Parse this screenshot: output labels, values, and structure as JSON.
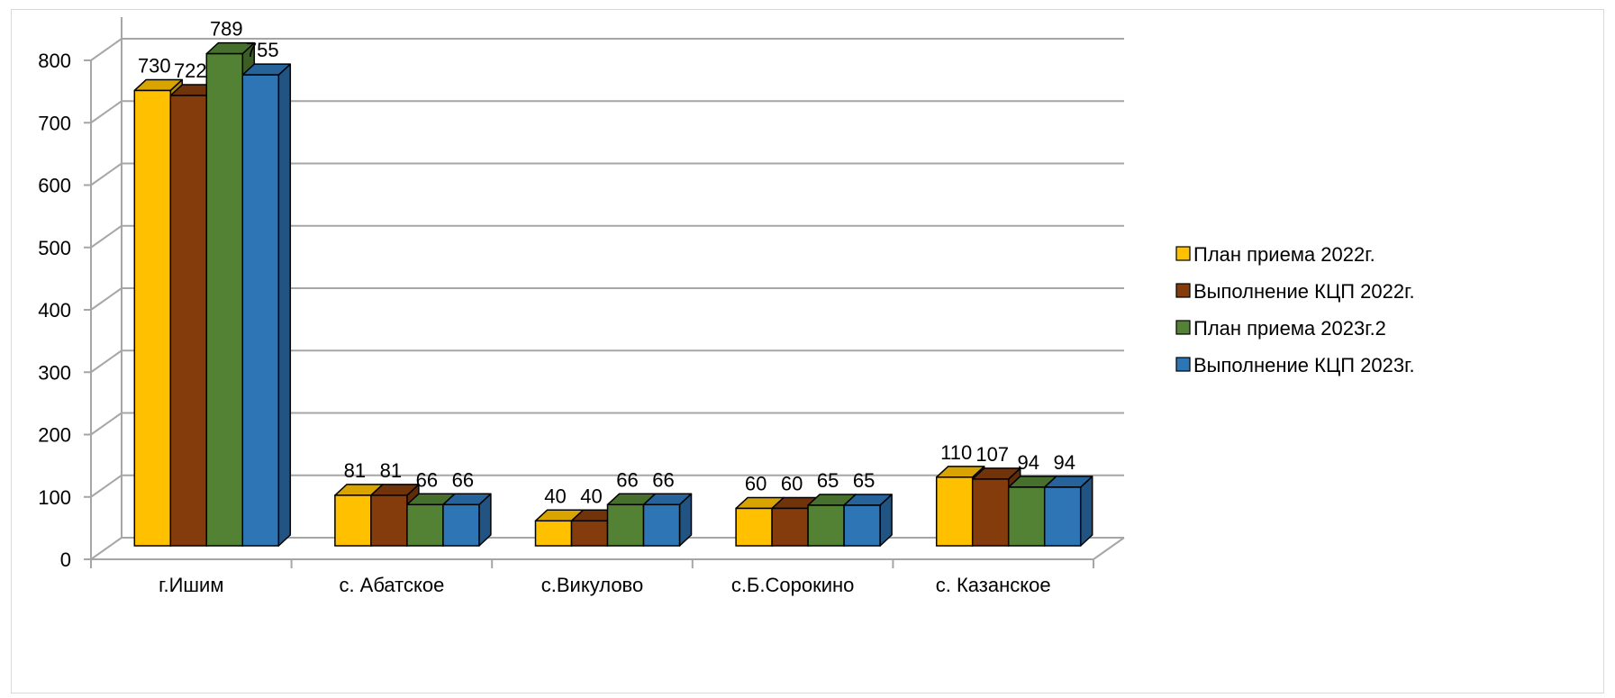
{
  "chart_data": {
    "type": "bar",
    "categories": [
      "г.Ишим",
      "с. Абатское",
      "с.Викулово",
      "с.Б.Сорокино",
      "с. Казанское"
    ],
    "series": [
      {
        "name": "План приема 2022г.",
        "color": "#FFC000",
        "values": [
          730,
          81,
          40,
          60,
          110
        ]
      },
      {
        "name": "Выполнение КЦП 2022г.",
        "color": "#843C0C",
        "values": [
          722,
          81,
          40,
          60,
          107
        ]
      },
      {
        "name": "План приема 2023г.2",
        "color": "#548235",
        "values": [
          789,
          66,
          66,
          65,
          94
        ]
      },
      {
        "name": "Выполнение КЦП 2023г.",
        "color": "#2E75B6",
        "values": [
          755,
          66,
          66,
          65,
          94
        ]
      }
    ],
    "ylim": [
      0,
      800
    ],
    "yticks": [
      0,
      100,
      200,
      300,
      400,
      500,
      600,
      700,
      800
    ],
    "grid": true,
    "legend": "right",
    "three_d": true
  }
}
